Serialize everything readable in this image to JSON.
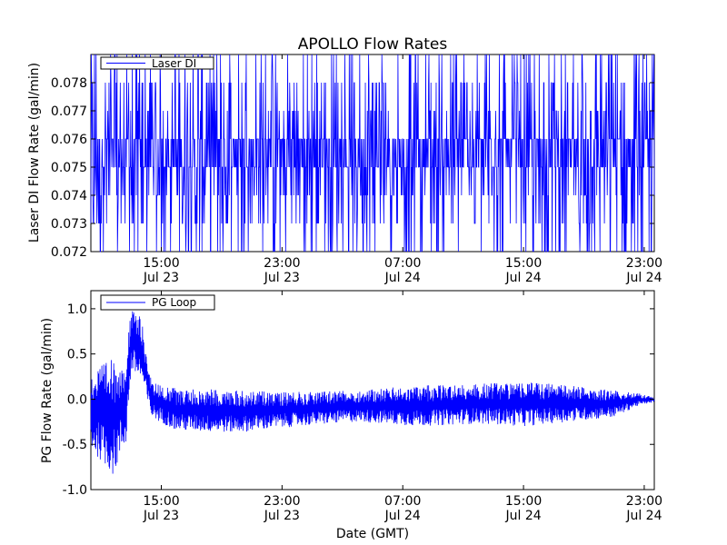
{
  "chart_data": [
    {
      "type": "line",
      "title": "APOLLO Flow Rates",
      "xlabel": "",
      "ylabel": "Laser DI Flow Rate (gal/min)",
      "x_range": [
        "Jul 23 10:20",
        "Jul 24 23:40"
      ],
      "ylim": [
        0.072,
        0.079
      ],
      "y_ticks": [
        "0.072",
        "0.073",
        "0.074",
        "0.075",
        "0.076",
        "0.077",
        "0.078"
      ],
      "x_ticks": [
        {
          "x": "Jul 23 15:00",
          "time": "15:00",
          "date": "Jul 23"
        },
        {
          "x": "Jul 23 23:00",
          "time": "23:00",
          "date": "Jul 23"
        },
        {
          "x": "Jul 24 07:00",
          "time": "07:00",
          "date": "Jul 24"
        },
        {
          "x": "Jul 24 15:00",
          "time": "15:00",
          "date": "Jul 24"
        },
        {
          "x": "Jul 24 23:00",
          "time": "23:00",
          "date": "Jul 24"
        }
      ],
      "legend": {
        "placement": "top-left",
        "entries": [
          "Laser DI"
        ]
      },
      "grid": false,
      "series": [
        {
          "name": "Laser DI",
          "color": "#0000ff",
          "baseline_low": 0.075,
          "baseline_high": 0.076,
          "spike_values": [
            0.072,
            0.073,
            0.074,
            0.077,
            0.078,
            0.079
          ]
        }
      ]
    },
    {
      "type": "line",
      "title": "",
      "xlabel": "Date (GMT)",
      "ylabel": "PG Flow Rate (gal/min)",
      "x_range": [
        "Jul 23 10:20",
        "Jul 24 23:40"
      ],
      "ylim": [
        -1.0,
        1.2
      ],
      "y_ticks": [
        "-1.0",
        "-0.5",
        "0.0",
        "0.5",
        "1.0"
      ],
      "x_ticks": [
        {
          "x": "Jul 23 15:00",
          "time": "15:00",
          "date": "Jul 23"
        },
        {
          "x": "Jul 23 23:00",
          "time": "23:00",
          "date": "Jul 23"
        },
        {
          "x": "Jul 24 07:00",
          "time": "07:00",
          "date": "Jul 24"
        },
        {
          "x": "Jul 24 15:00",
          "time": "15:00",
          "date": "Jul 24"
        },
        {
          "x": "Jul 24 23:00",
          "time": "23:00",
          "date": "Jul 24"
        }
      ],
      "legend": {
        "placement": "top-left",
        "entries": [
          "PG Loop"
        ]
      },
      "grid": false,
      "series": [
        {
          "name": "PG Loop",
          "color": "#0000ff",
          "envelope": [
            {
              "x": "Jul 23 10:20",
              "min": -0.55,
              "max": 0.3
            },
            {
              "x": "Jul 23 11:50",
              "min": -0.85,
              "max": 0.45
            },
            {
              "x": "Jul 23 12:40",
              "min": -0.5,
              "max": 0.5
            },
            {
              "x": "Jul 23 13:00",
              "min": 0.3,
              "max": 1.0
            },
            {
              "x": "Jul 23 13:40",
              "min": 0.2,
              "max": 0.9
            },
            {
              "x": "Jul 23 14:20",
              "min": -0.2,
              "max": 0.2
            },
            {
              "x": "Jul 23 16:00",
              "min": -0.35,
              "max": 0.12
            },
            {
              "x": "Jul 23 20:00",
              "min": -0.37,
              "max": 0.1
            },
            {
              "x": "Jul 24 00:00",
              "min": -0.3,
              "max": 0.08
            },
            {
              "x": "Jul 24 04:00",
              "min": -0.25,
              "max": 0.1
            },
            {
              "x": "Jul 24 08:00",
              "min": -0.3,
              "max": 0.15
            },
            {
              "x": "Jul 24 12:00",
              "min": -0.27,
              "max": 0.17
            },
            {
              "x": "Jul 24 15:00",
              "min": -0.3,
              "max": 0.2
            },
            {
              "x": "Jul 24 18:00",
              "min": -0.25,
              "max": 0.15
            },
            {
              "x": "Jul 24 21:00",
              "min": -0.2,
              "max": 0.1
            },
            {
              "x": "Jul 24 22:30",
              "min": -0.08,
              "max": 0.07
            },
            {
              "x": "Jul 24 23:40",
              "min": -0.03,
              "max": 0.02
            }
          ]
        }
      ]
    }
  ]
}
